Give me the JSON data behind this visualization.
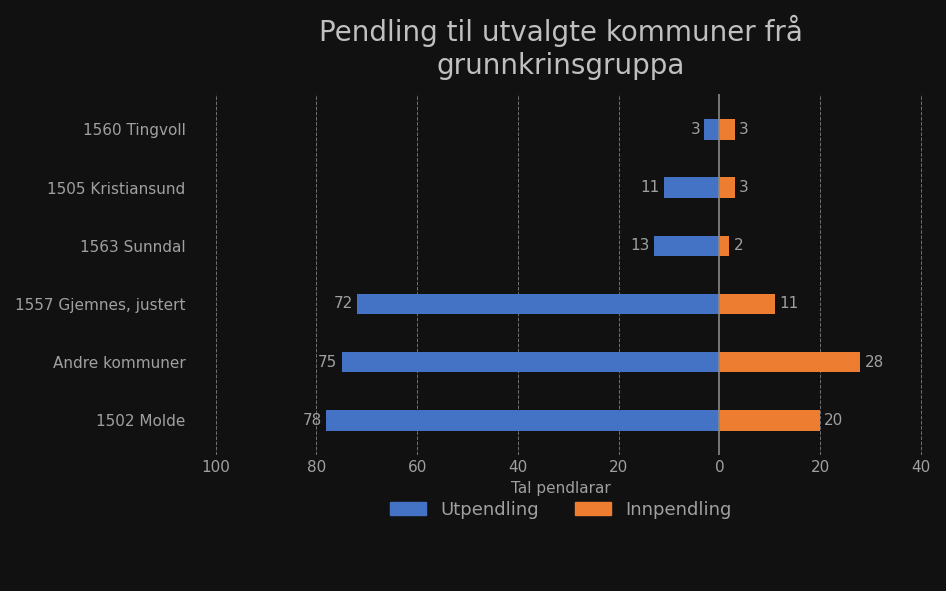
{
  "title": "Pendling til utvalgte kommuner frå\ngrunnkrinsgruppa",
  "xlabel": "Tal pendlarar",
  "categories": [
    "1502 Molde",
    "Andre kommuner",
    "1557 Gjemnes, justert",
    "1563 Sunndal",
    "1505 Kristiansund",
    "1560 Tingvoll"
  ],
  "utpendling": [
    78,
    75,
    72,
    13,
    11,
    3
  ],
  "innpendling": [
    20,
    28,
    11,
    2,
    3,
    3
  ],
  "bar_color_ut": "#4472C4",
  "bar_color_inn": "#ED7D31",
  "background_color": "#1a1a2e",
  "plot_bg_color": "#0d0d0d",
  "text_color": "#A0A0A0",
  "title_color": "#C0C0C0",
  "grid_color": "#FFFFFF",
  "xlim_left": -105,
  "xlim_right": 42,
  "xticks": [
    -100,
    -80,
    -60,
    -40,
    -20,
    0,
    20,
    40
  ],
  "xticklabels": [
    "100",
    "80",
    "60",
    "40",
    "20",
    "0",
    "20",
    "40"
  ],
  "title_fontsize": 20,
  "label_fontsize": 11,
  "tick_fontsize": 11,
  "bar_height": 0.35,
  "legend_labels": [
    "Utpendling",
    "Innpendling"
  ]
}
